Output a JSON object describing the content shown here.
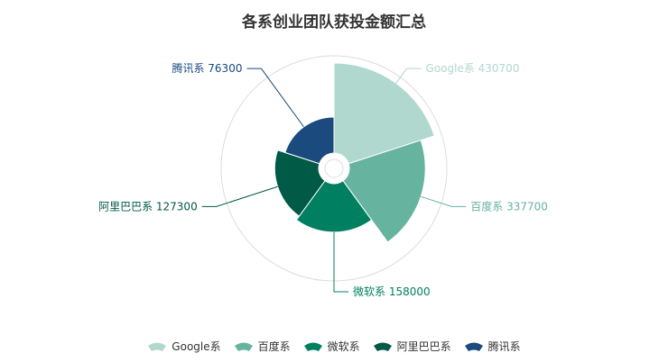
{
  "chart_data": {
    "type": "pie",
    "variant": "nightingale-rose",
    "title": "各系创业团队获投金额汇总",
    "categories": [
      "Google系",
      "百度系",
      "微软系",
      "阿里巴巴系",
      "腾讯系"
    ],
    "values": [
      430700,
      337700,
      158000,
      127300,
      76300
    ],
    "colors": [
      "#b0d8cf",
      "#66b3a0",
      "#008060",
      "#005a45",
      "#1a4a7e"
    ],
    "labels": [
      "Google系 430700",
      "百度系 337700",
      "微软系 158000",
      "阿里巴巴系 127300",
      "腾讯系 76300"
    ],
    "legend_position": "bottom"
  }
}
